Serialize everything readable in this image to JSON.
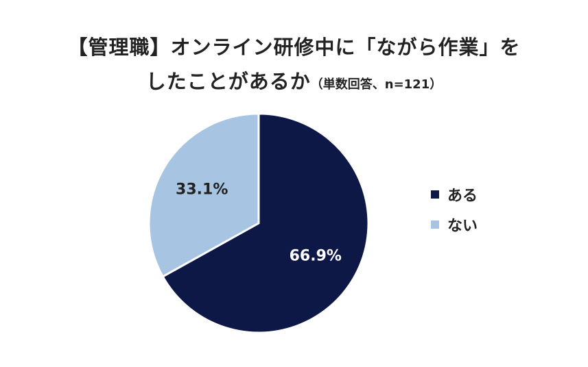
{
  "chart_data": {
    "type": "pie",
    "title_line1": "【管理職】オンライン研修中に「ながら作業」を",
    "title_line2": "したことがあるか",
    "subtitle": "（単数回答、n=121）",
    "categories": [
      "ある",
      "ない"
    ],
    "values": [
      66.9,
      33.1
    ],
    "labels": [
      "66.9%",
      "33.1%"
    ],
    "colors": [
      "#0d1847",
      "#a7c4e2"
    ],
    "label_colors": [
      "#ffffff",
      "#222222"
    ],
    "start_angle_deg": 0,
    "direction": "clockwise",
    "legend_position": "right"
  }
}
